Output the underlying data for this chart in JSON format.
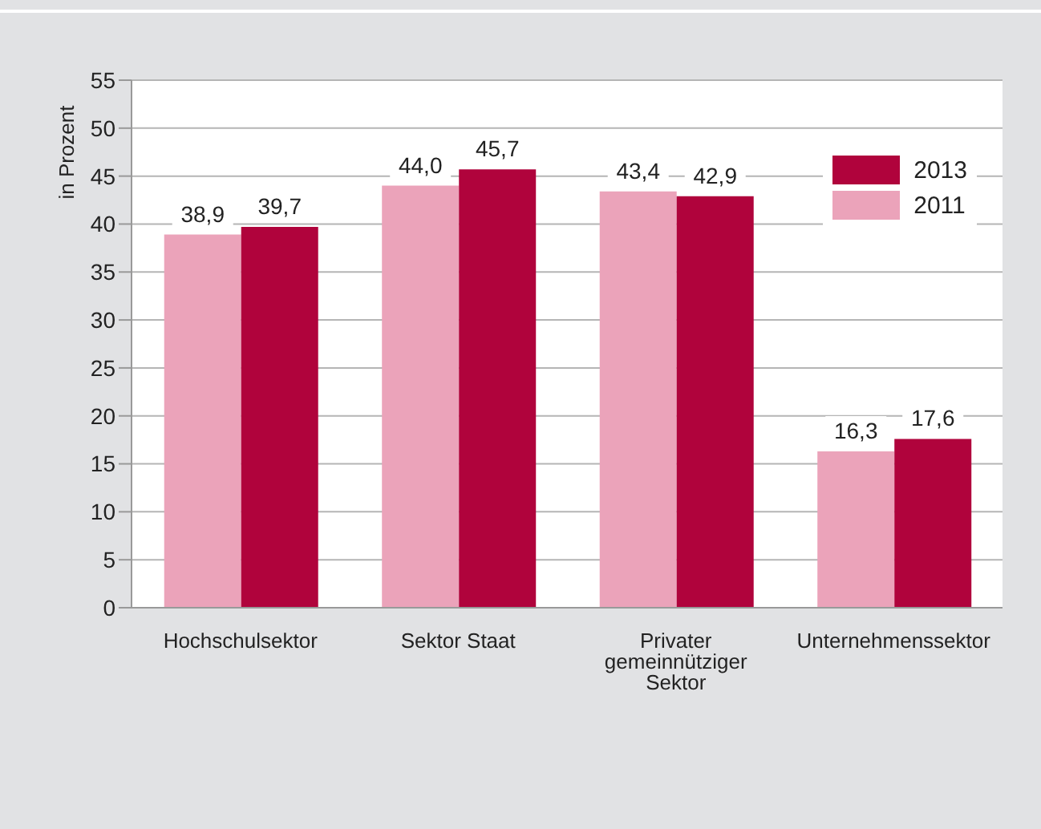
{
  "chart_data": {
    "type": "bar",
    "ylabel": "in Prozent",
    "categories": [
      "Hochschulsektor",
      "Sektor Staat",
      "Privater gemeinnütziger Sektor",
      "Unternehmenssektor"
    ],
    "series": [
      {
        "name": "2011",
        "color": "#eba3ba",
        "values": [
          38.9,
          44.0,
          43.4,
          16.3
        ],
        "value_labels": [
          "38,9",
          "44,0",
          "43,4",
          "16,3"
        ]
      },
      {
        "name": "2013",
        "color": "#b0033c",
        "values": [
          39.7,
          45.7,
          42.9,
          17.6
        ],
        "value_labels": [
          "39,7",
          "45,7",
          "42,9",
          "17,6"
        ]
      }
    ],
    "ylim": [
      0,
      55
    ],
    "yticks": [
      0,
      5,
      10,
      15,
      20,
      25,
      30,
      35,
      40,
      45,
      50,
      55
    ],
    "grid": "y",
    "legend": "top right"
  }
}
